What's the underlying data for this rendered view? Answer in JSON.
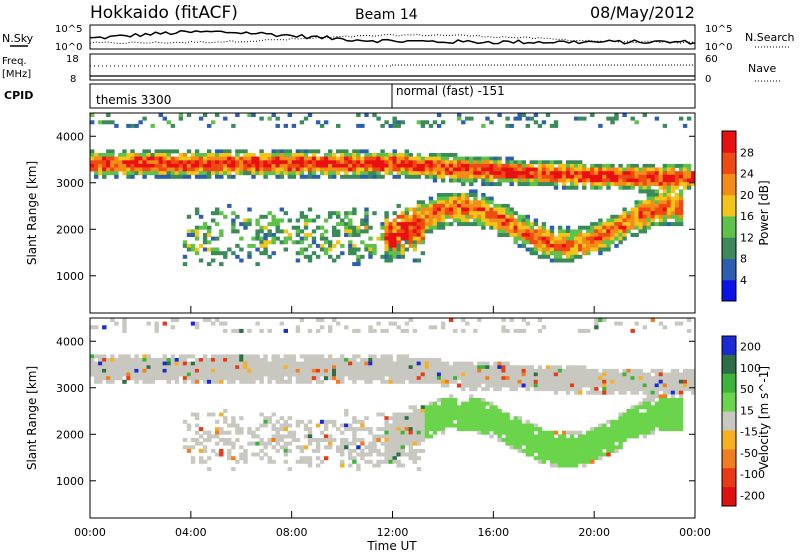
{
  "header": {
    "title": "Hokkaido (fitACF)",
    "beam": "Beam 14",
    "date": "08/May/2012"
  },
  "noise_panel": {
    "left_label": "N.Sky",
    "right_label": "N.Search",
    "ticks_left": [
      "10^5",
      "10^0"
    ],
    "ticks_right": [
      "10^5",
      "10^0"
    ]
  },
  "freq_panel": {
    "left_label_1": "Freq.",
    "left_label_2": "[MHz]",
    "right_label": "Nave",
    "ticks_left": [
      "18",
      "8"
    ],
    "ticks_right": [
      "60",
      "0"
    ]
  },
  "cpid_panel": {
    "label": "CPID",
    "mode_1": "themis 3300",
    "mode_2": "normal (fast) -151"
  },
  "chart_data": [
    {
      "type": "heatmap",
      "title": "Power",
      "ylabel": "Slant Range [km]",
      "ylim": [
        200,
        4500
      ],
      "yticks": [
        "1000",
        "2000",
        "3000",
        "4000"
      ],
      "colorbar_label": "Power [dB]",
      "colorbar_ticks": [
        "4",
        "8",
        "12",
        "16",
        "20",
        "24",
        "28"
      ],
      "colors": [
        "#0a14e6",
        "#2c5fb0",
        "#3a8a5a",
        "#5ec24a",
        "#f3c51b",
        "#f58c17",
        "#ee4a12",
        "#e81010"
      ]
    },
    {
      "type": "heatmap",
      "title": "Velocity",
      "ylabel": "Slant Range [km]",
      "ylim": [
        200,
        4500
      ],
      "yticks": [
        "1000",
        "2000",
        "3000",
        "4000"
      ],
      "colorbar_label": "Velocity [m s^-1]",
      "colorbar_ticks": [
        "200",
        "100",
        "50",
        "15",
        "-15",
        "-50",
        "-100",
        "-200"
      ],
      "colors": [
        "#1a2bd6",
        "#2e6e47",
        "#3cb43a",
        "#6ad44b",
        "#c8c8c0",
        "#f6b022",
        "#f07e1e",
        "#e83a14",
        "#e01010"
      ]
    }
  ],
  "time_axis": {
    "label": "Time UT",
    "ticks": [
      "00:00",
      "04:00",
      "08:00",
      "12:00",
      "16:00",
      "20:00",
      "00:00"
    ]
  }
}
